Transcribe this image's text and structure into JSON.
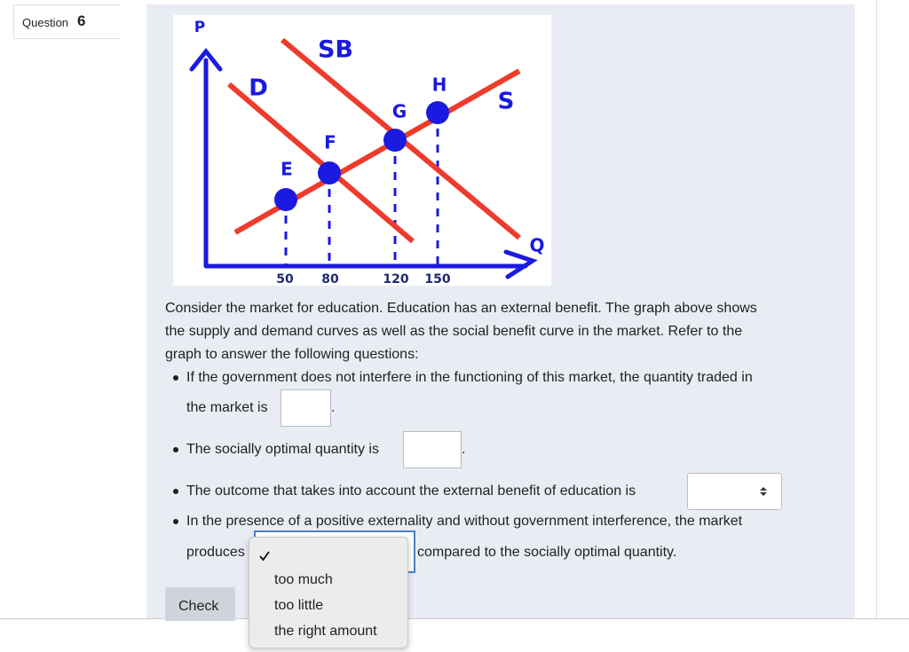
{
  "question": {
    "label": "Question",
    "number": "6"
  },
  "graph": {
    "axis_labels": {
      "y": "P",
      "x": "Q"
    },
    "curve_labels": {
      "social_benefit": "SB",
      "demand": "D",
      "supply": "S"
    },
    "point_labels": [
      "E",
      "F",
      "G",
      "H"
    ],
    "x_tick_labels": [
      "50",
      "80",
      "120",
      "150"
    ]
  },
  "prompt_lines": [
    "Consider the market for education. Education has an external benefit. The graph above shows",
    "the supply and demand curves as well as the social benefit curve in the market. Refer to the",
    "graph to answer the following questions:"
  ],
  "items": [
    {
      "lines": [
        "If the government does not interfere in the functioning of this market, the quantity traded in",
        "the market is"
      ],
      "after": "."
    },
    {
      "lines": [
        "The socially optimal quantity is"
      ],
      "after": "."
    },
    {
      "lines": [
        "The outcome that takes into account the external benefit of education is"
      ]
    },
    {
      "lines": [
        "In the presence of a positive externality and without government interference, the market",
        "produces"
      ],
      "after": "compared to the socially optimal quantity."
    }
  ],
  "dropdown_options": [
    "too much",
    "too little",
    "the right amount"
  ],
  "button": "Check"
}
